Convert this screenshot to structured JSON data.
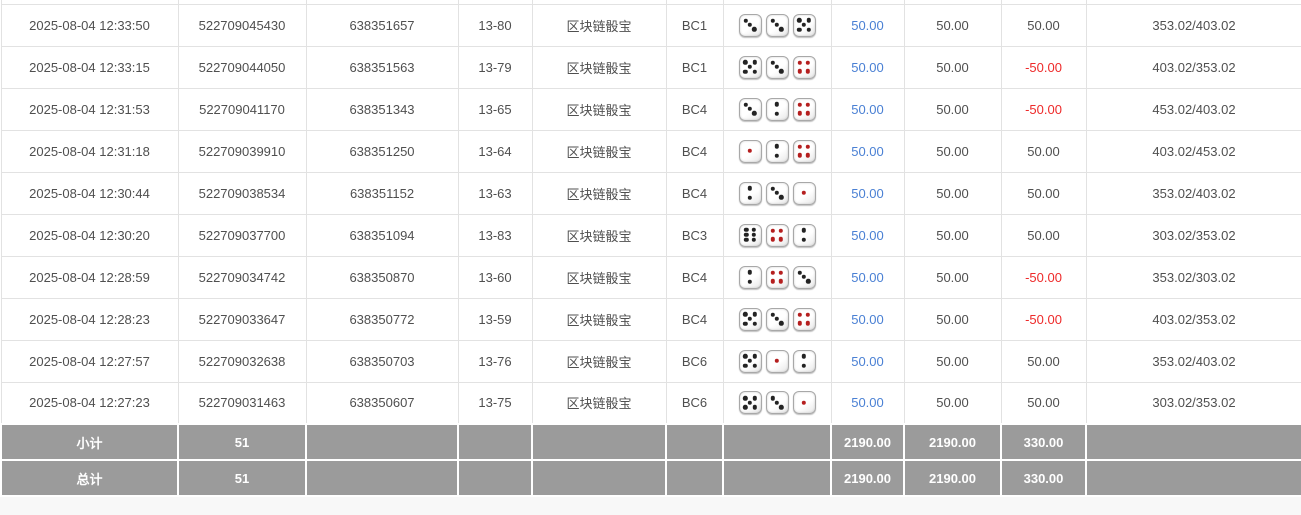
{
  "game_name": "区块链骰宝",
  "colors": {
    "bet_link_blue": "#4a80d4",
    "loss_red": "#ee2a2a",
    "summary_gray": "#9b9b9b",
    "black_pip": "#232323",
    "red_pip": "#b51f1f"
  },
  "rows": [
    {
      "time": "2025-08-04 12:33:50",
      "order_no": "522709045430",
      "txn_id": "638351657",
      "round": "13-80",
      "game": "区块链骰宝",
      "table_code": "BC1",
      "dice": [
        3,
        3,
        5
      ],
      "bet": "50.00",
      "valid": "50.00",
      "win_loss": "50.00",
      "loss": false,
      "balance": "353.02/403.02"
    },
    {
      "time": "2025-08-04 12:33:15",
      "order_no": "522709044050",
      "txn_id": "638351563",
      "round": "13-79",
      "game": "区块链骰宝",
      "table_code": "BC1",
      "dice": [
        5,
        3,
        4
      ],
      "bet": "50.00",
      "valid": "50.00",
      "win_loss": "-50.00",
      "loss": true,
      "balance": "403.02/353.02"
    },
    {
      "time": "2025-08-04 12:31:53",
      "order_no": "522709041170",
      "txn_id": "638351343",
      "round": "13-65",
      "game": "区块链骰宝",
      "table_code": "BC4",
      "dice": [
        3,
        2,
        4
      ],
      "bet": "50.00",
      "valid": "50.00",
      "win_loss": "-50.00",
      "loss": true,
      "balance": "453.02/403.02"
    },
    {
      "time": "2025-08-04 12:31:18",
      "order_no": "522709039910",
      "txn_id": "638351250",
      "round": "13-64",
      "game": "区块链骰宝",
      "table_code": "BC4",
      "dice": [
        1,
        2,
        4
      ],
      "bet": "50.00",
      "valid": "50.00",
      "win_loss": "50.00",
      "loss": false,
      "balance": "403.02/453.02"
    },
    {
      "time": "2025-08-04 12:30:44",
      "order_no": "522709038534",
      "txn_id": "638351152",
      "round": "13-63",
      "game": "区块链骰宝",
      "table_code": "BC4",
      "dice": [
        2,
        3,
        1
      ],
      "bet": "50.00",
      "valid": "50.00",
      "win_loss": "50.00",
      "loss": false,
      "balance": "353.02/403.02"
    },
    {
      "time": "2025-08-04 12:30:20",
      "order_no": "522709037700",
      "txn_id": "638351094",
      "round": "13-83",
      "game": "区块链骰宝",
      "table_code": "BC3",
      "dice": [
        6,
        4,
        2
      ],
      "bet": "50.00",
      "valid": "50.00",
      "win_loss": "50.00",
      "loss": false,
      "balance": "303.02/353.02"
    },
    {
      "time": "2025-08-04 12:28:59",
      "order_no": "522709034742",
      "txn_id": "638350870",
      "round": "13-60",
      "game": "区块链骰宝",
      "table_code": "BC4",
      "dice": [
        2,
        4,
        3
      ],
      "bet": "50.00",
      "valid": "50.00",
      "win_loss": "-50.00",
      "loss": true,
      "balance": "353.02/303.02"
    },
    {
      "time": "2025-08-04 12:28:23",
      "order_no": "522709033647",
      "txn_id": "638350772",
      "round": "13-59",
      "game": "区块链骰宝",
      "table_code": "BC4",
      "dice": [
        5,
        3,
        4
      ],
      "bet": "50.00",
      "valid": "50.00",
      "win_loss": "-50.00",
      "loss": true,
      "balance": "403.02/353.02"
    },
    {
      "time": "2025-08-04 12:27:57",
      "order_no": "522709032638",
      "txn_id": "638350703",
      "round": "13-76",
      "game": "区块链骰宝",
      "table_code": "BC6",
      "dice": [
        5,
        1,
        2
      ],
      "bet": "50.00",
      "valid": "50.00",
      "win_loss": "50.00",
      "loss": false,
      "balance": "353.02/403.02"
    },
    {
      "time": "2025-08-04 12:27:23",
      "order_no": "522709031463",
      "txn_id": "638350607",
      "round": "13-75",
      "game": "区块链骰宝",
      "table_code": "BC6",
      "dice": [
        5,
        3,
        1
      ],
      "bet": "50.00",
      "valid": "50.00",
      "win_loss": "50.00",
      "loss": false,
      "balance": "303.02/353.02"
    }
  ],
  "summary_rows": [
    {
      "label": "小计",
      "count": "51",
      "bet_total": "2190.00",
      "valid_total": "2190.00",
      "win_loss_total": "330.00"
    },
    {
      "label": "总计",
      "count": "51",
      "bet_total": "2190.00",
      "valid_total": "2190.00",
      "win_loss_total": "330.00"
    }
  ]
}
